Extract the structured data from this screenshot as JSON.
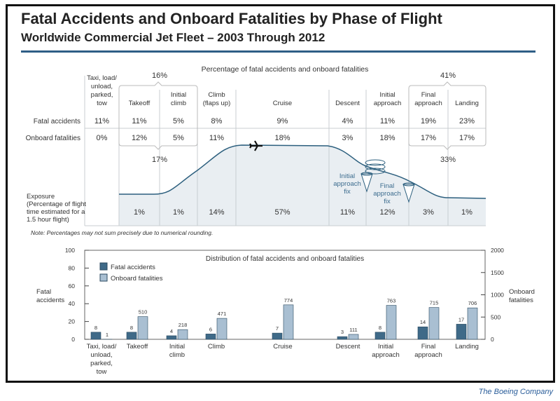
{
  "title": "Fatal Accidents and Onboard Fatalities by Phase of Flight",
  "subtitle": "Worldwide Commercial Jet Fleet – 2003 Through 2012",
  "top_table": {
    "heading": "Percentage of fatal accidents and onboard fatalities",
    "row_labels": {
      "fatal": "Fatal accidents",
      "onboard": "Onboard fatalities",
      "exposure": [
        "Exposure",
        "(Percentage of flight",
        "time estimated for a",
        "1.5 hour flight)"
      ]
    },
    "phases": [
      {
        "label": [
          "Taxi, load/",
          "unload,",
          "parked,",
          "tow"
        ],
        "fatal": "11%",
        "onboard": "0%",
        "exposure": ""
      },
      {
        "label": [
          "Takeoff"
        ],
        "fatal": "11%",
        "onboard": "12%",
        "exposure": "1%"
      },
      {
        "label": [
          "Initial",
          "climb"
        ],
        "fatal": "5%",
        "onboard": "5%",
        "exposure": "1%"
      },
      {
        "label": [
          "Climb",
          "(flaps up)"
        ],
        "fatal": "8%",
        "onboard": "11%",
        "exposure": "14%"
      },
      {
        "label": [
          "Cruise"
        ],
        "fatal": "9%",
        "onboard": "18%",
        "exposure": "57%"
      },
      {
        "label": [
          "Descent"
        ],
        "fatal": "4%",
        "onboard": "3%",
        "exposure": "11%"
      },
      {
        "label": [
          "Initial",
          "approach"
        ],
        "fatal": "11%",
        "onboard": "18%",
        "exposure": "12%"
      },
      {
        "label": [
          "Final",
          "approach"
        ],
        "fatal": "19%",
        "onboard": "17%",
        "exposure": "3%"
      },
      {
        "label": [
          "Landing"
        ],
        "fatal": "23%",
        "onboard": "17%",
        "exposure": "1%"
      }
    ],
    "groups": {
      "takeoff_fatal": "16%",
      "takeoff_onboard": "17%",
      "landing_fatal": "41%",
      "landing_onboard": "33%"
    },
    "annotations": {
      "initial_fix": [
        "Initial",
        "approach",
        "fix"
      ],
      "final_fix": [
        "Final",
        "approach",
        "fix"
      ]
    },
    "note": "Note:  Percentages may not sum precisely due to numerical rounding."
  },
  "chart_data": {
    "type": "bar",
    "title": "Distribution of fatal accidents and onboard fatalities",
    "categories": [
      [
        "Taxi, load/",
        "unload,",
        "parked,",
        "tow"
      ],
      [
        "Takeoff"
      ],
      [
        "Initial",
        "climb"
      ],
      [
        "Climb"
      ],
      [
        "Cruise"
      ],
      [
        "Descent"
      ],
      [
        "Initial",
        "approach"
      ],
      [
        "Final",
        "approach"
      ],
      [
        "Landing"
      ]
    ],
    "series": [
      {
        "name": "Fatal accidents",
        "axis": "left",
        "values": [
          8,
          8,
          4,
          6,
          7,
          3,
          8,
          14,
          17
        ],
        "color": "#3f6a88"
      },
      {
        "name": "Onboard fatalities",
        "axis": "right",
        "values": [
          1,
          510,
          218,
          471,
          774,
          111,
          763,
          715,
          706
        ],
        "color": "#a9bfd2"
      }
    ],
    "ylabel": [
      "Fatal",
      "accidents"
    ],
    "y2label": [
      "Onboard",
      "fatalities"
    ],
    "ylim": [
      0,
      100
    ],
    "y2lim": [
      0,
      2000
    ],
    "yticks": [
      0,
      20,
      40,
      60,
      80,
      100
    ],
    "y2ticks": [
      0,
      500,
      1000,
      1500,
      2000
    ],
    "legend": "top-left",
    "grid": false
  },
  "caption": "The Boeing Company"
}
